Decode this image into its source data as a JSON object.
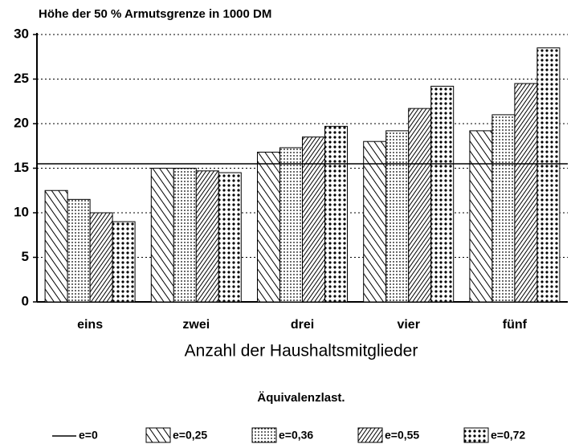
{
  "chart_data": {
    "type": "bar",
    "title": "Höhe der 50 % Armutsgrenze in 1000 DM",
    "x_label": "Anzahl der Haushaltsmitglieder",
    "legend_title": "Äquivalenzlast.",
    "categories": [
      "eins",
      "zwei",
      "drei",
      "vier",
      "fünf"
    ],
    "reference_line": {
      "name": "e=0",
      "value": 15.5
    },
    "series": [
      {
        "name": "e=0,25",
        "pattern": "backslash",
        "color": "#000000",
        "values": [
          12.5,
          15,
          16.8,
          18,
          19.2
        ]
      },
      {
        "name": "e=0,36",
        "pattern": "fine-dots",
        "color": "#000000",
        "values": [
          11.5,
          15,
          17.3,
          19.2,
          21
        ]
      },
      {
        "name": "e=0,55",
        "pattern": "slash",
        "color": "#000000",
        "values": [
          10,
          14.7,
          18.5,
          21.7,
          24.5
        ]
      },
      {
        "name": "e=0,72",
        "pattern": "coarse-dots",
        "color": "#000000",
        "values": [
          9,
          14.5,
          19.7,
          24.2,
          28.5
        ]
      }
    ],
    "ylim": [
      0,
      30
    ],
    "yticks": [
      0,
      5,
      10,
      15,
      20,
      25,
      30
    ],
    "grid": true
  }
}
